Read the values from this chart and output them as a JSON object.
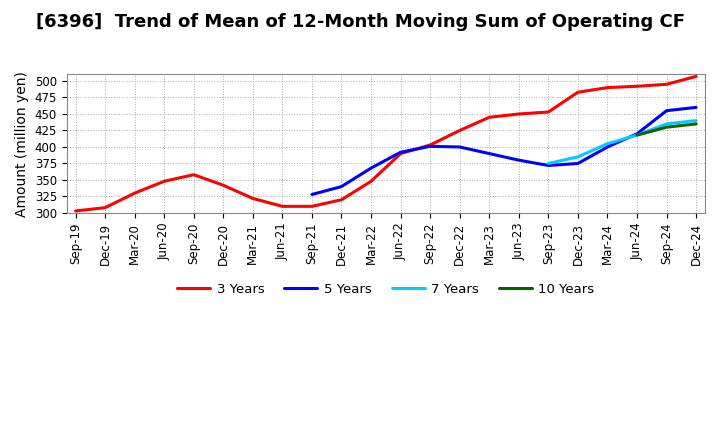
{
  "title": "[6396]  Trend of Mean of 12-Month Moving Sum of Operating CF",
  "ylabel": "Amount (million yen)",
  "ylim": [
    300,
    510
  ],
  "yticks": [
    300,
    325,
    350,
    375,
    400,
    425,
    450,
    475,
    500
  ],
  "background_color": "#ffffff",
  "grid_color": "#aaaaaa",
  "x_tick_labels": [
    "Sep-19",
    "Dec-19",
    "Mar-20",
    "Jun-20",
    "Sep-20",
    "Dec-20",
    "Mar-21",
    "Jun-21",
    "Sep-21",
    "Dec-21",
    "Mar-22",
    "Jun-22",
    "Sep-22",
    "Dec-22",
    "Mar-23",
    "Jun-23",
    "Sep-23",
    "Dec-23",
    "Mar-24",
    "Jun-24",
    "Sep-24",
    "Dec-24"
  ],
  "lines": [
    {
      "label": "3 Years",
      "color": "#ff0000",
      "points_x": [
        "Sep-19",
        "Dec-19",
        "Mar-20",
        "Jun-20",
        "Sep-20",
        "Dec-20",
        "Mar-21",
        "Jun-21",
        "Sep-21",
        "Dec-21",
        "Mar-22",
        "Jun-22",
        "Sep-22",
        "Dec-22",
        "Mar-23",
        "Jun-23",
        "Sep-23",
        "Dec-23",
        "Mar-24",
        "Jun-24",
        "Sep-24",
        "Dec-24"
      ],
      "points_y": [
        303,
        308,
        330,
        348,
        358,
        342,
        322,
        310,
        310,
        320,
        348,
        390,
        403,
        425,
        445,
        450,
        453,
        483,
        490,
        492,
        495,
        507
      ]
    },
    {
      "label": "5 Years",
      "color": "#0000ff",
      "points_x": [
        "Sep-21",
        "Dec-21",
        "Mar-22",
        "Jun-22",
        "Sep-22",
        "Dec-22",
        "Mar-23",
        "Jun-23",
        "Sep-23",
        "Dec-23",
        "Mar-24",
        "Jun-24",
        "Sep-24",
        "Dec-24"
      ],
      "points_y": [
        328,
        340,
        368,
        392,
        401,
        400,
        390,
        380,
        372,
        375,
        400,
        420,
        455,
        460
      ]
    },
    {
      "label": "7 Years",
      "color": "#00ccff",
      "points_x": [
        "Sep-23",
        "Dec-23",
        "Mar-24",
        "Jun-24",
        "Sep-24",
        "Dec-24"
      ],
      "points_y": [
        375,
        385,
        405,
        418,
        435,
        440
      ]
    },
    {
      "label": "10 Years",
      "color": "#006600",
      "points_x": [
        "Jun-24",
        "Sep-24",
        "Dec-24"
      ],
      "points_y": [
        418,
        430,
        435
      ]
    }
  ],
  "title_fontsize": 13,
  "axis_label_fontsize": 10,
  "tick_fontsize": 8.5,
  "legend_fontsize": 9.5
}
